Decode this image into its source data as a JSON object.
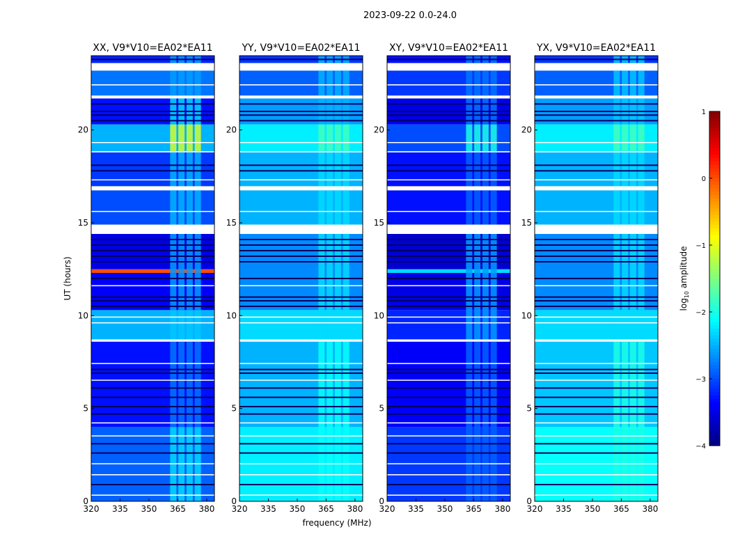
{
  "chart_data": {
    "type": "heatmap",
    "title": "2023-09-22 0.0-24.0",
    "xlabel": "frequency (MHz)",
    "ylabel": "UT (hours)",
    "xlim": [
      320,
      384
    ],
    "ylim": [
      0,
      24
    ],
    "xticks": [
      "320",
      "335",
      "350",
      "365",
      "380"
    ],
    "xtick_values": [
      320,
      335,
      350,
      365,
      380
    ],
    "yticks": [
      "0",
      "5",
      "10",
      "15",
      "20"
    ],
    "ytick_values": [
      0,
      5,
      10,
      15,
      20
    ],
    "rfi_band_mhz": [
      361,
      378
    ],
    "flagged_hours": [
      [
        23.2,
        23.6
      ],
      [
        21.7,
        21.85
      ],
      [
        16.75,
        16.97
      ],
      [
        14.4,
        14.9
      ],
      [
        8.6,
        8.72
      ],
      [
        0.3,
        0.36
      ],
      [
        1.4,
        1.46
      ],
      [
        2.0,
        2.05
      ],
      [
        3.5,
        3.55
      ],
      [
        4.2,
        4.25
      ],
      [
        6.5,
        6.55
      ],
      [
        7.4,
        7.45
      ],
      [
        9.6,
        9.64
      ],
      [
        9.9,
        9.95
      ],
      [
        11.6,
        11.64
      ],
      [
        15.6,
        15.64
      ],
      [
        17.3,
        17.34
      ],
      [
        18.8,
        18.85
      ],
      [
        19.3,
        19.35
      ],
      [
        22.4,
        22.46
      ]
    ],
    "dark_hours": [
      0.9,
      2.6,
      3.1,
      4.7,
      5.1,
      5.6,
      6.1,
      6.9,
      7.1,
      10.5,
      10.8,
      11.0,
      12.0,
      12.9,
      13.2,
      13.5,
      13.8,
      14.1,
      17.8,
      18.1,
      20.5,
      20.8,
      21.0,
      21.4,
      23.8
    ],
    "colorbar": {
      "label": "log10 amplitude",
      "range": [
        -4,
        1
      ],
      "ticks": [
        "1",
        "0",
        "−1",
        "−2",
        "−3",
        "−4"
      ],
      "tick_values": [
        1,
        0,
        -1,
        -2,
        -3,
        -4
      ]
    },
    "panels": [
      {
        "title": "XX, V9*V10=EA02*EA11",
        "segments": [
          [
            0,
            4,
            -2.9
          ],
          [
            4,
            8.6,
            -3.3
          ],
          [
            8.72,
            10.3,
            -2.5
          ],
          [
            10.3,
            12.3,
            -3.4
          ],
          [
            12.3,
            12.5,
            0.0
          ],
          [
            12.5,
            14.4,
            -3.5
          ],
          [
            14.9,
            16.75,
            -3.0
          ],
          [
            16.97,
            18.8,
            -3.1
          ],
          [
            18.85,
            20.3,
            -2.5
          ],
          [
            20.3,
            21.7,
            -3.3
          ],
          [
            21.85,
            23.2,
            -2.8
          ],
          [
            23.6,
            24,
            -3.2
          ]
        ],
        "rfi": [
          [
            0,
            4,
            -2.3
          ],
          [
            4,
            8.6,
            -2.8
          ],
          [
            8.72,
            10.3,
            -2.4
          ],
          [
            10.3,
            14.4,
            -2.6
          ],
          [
            14.9,
            18.8,
            -2.5
          ],
          [
            18.85,
            20.3,
            -1.1
          ],
          [
            20.3,
            21.7,
            -2.3
          ],
          [
            21.85,
            24,
            -2.6
          ]
        ]
      },
      {
        "title": "YY, V9*V10=EA02*EA11",
        "segments": [
          [
            0,
            4,
            -2.2
          ],
          [
            4,
            8.6,
            -2.5
          ],
          [
            8.72,
            10.3,
            -2.3
          ],
          [
            10.3,
            14.4,
            -2.7
          ],
          [
            14.9,
            16.75,
            -2.5
          ],
          [
            16.97,
            18.8,
            -2.5
          ],
          [
            18.85,
            20.3,
            -2.2
          ],
          [
            20.3,
            21.7,
            -2.6
          ],
          [
            21.85,
            23.2,
            -2.9
          ],
          [
            23.6,
            24,
            -3.1
          ]
        ],
        "rfi": [
          [
            0,
            8.6,
            -2.1
          ],
          [
            8.72,
            14.4,
            -2.3
          ],
          [
            14.9,
            18.8,
            -2.3
          ],
          [
            18.85,
            20.3,
            -1.8
          ],
          [
            20.3,
            24,
            -2.5
          ]
        ]
      },
      {
        "title": "XY, V9*V10=EA02*EA11",
        "segments": [
          [
            0,
            4,
            -3.1
          ],
          [
            4,
            8.6,
            -3.4
          ],
          [
            8.72,
            10.3,
            -3.2
          ],
          [
            10.3,
            12.3,
            -3.5
          ],
          [
            12.3,
            12.5,
            -2.3
          ],
          [
            12.5,
            14.4,
            -3.6
          ],
          [
            14.9,
            16.75,
            -3.3
          ],
          [
            16.97,
            18.8,
            -3.3
          ],
          [
            18.85,
            20.3,
            -3.0
          ],
          [
            20.3,
            21.7,
            -3.5
          ],
          [
            21.85,
            23.2,
            -3.1
          ],
          [
            23.6,
            24,
            -3.3
          ]
        ],
        "rfi": [
          [
            0,
            8.6,
            -2.9
          ],
          [
            8.72,
            14.4,
            -2.6
          ],
          [
            14.9,
            18.8,
            -2.9
          ],
          [
            18.85,
            20.3,
            -2.0
          ],
          [
            20.3,
            24,
            -2.8
          ]
        ]
      },
      {
        "title": "YX, V9*V10=EA02*EA11",
        "segments": [
          [
            0,
            4,
            -2.1
          ],
          [
            4,
            8.6,
            -2.4
          ],
          [
            8.72,
            10.3,
            -2.3
          ],
          [
            10.3,
            14.4,
            -2.7
          ],
          [
            14.9,
            16.75,
            -2.5
          ],
          [
            16.97,
            18.8,
            -2.5
          ],
          [
            18.85,
            20.3,
            -2.2
          ],
          [
            20.3,
            21.7,
            -2.6
          ],
          [
            21.85,
            23.2,
            -2.9
          ],
          [
            23.6,
            24,
            -3.1
          ]
        ],
        "rfi": [
          [
            0,
            8.6,
            -2.0
          ],
          [
            8.72,
            14.4,
            -2.3
          ],
          [
            14.9,
            18.8,
            -2.3
          ],
          [
            18.85,
            20.3,
            -1.8
          ],
          [
            20.3,
            24,
            -2.4
          ]
        ]
      }
    ]
  }
}
